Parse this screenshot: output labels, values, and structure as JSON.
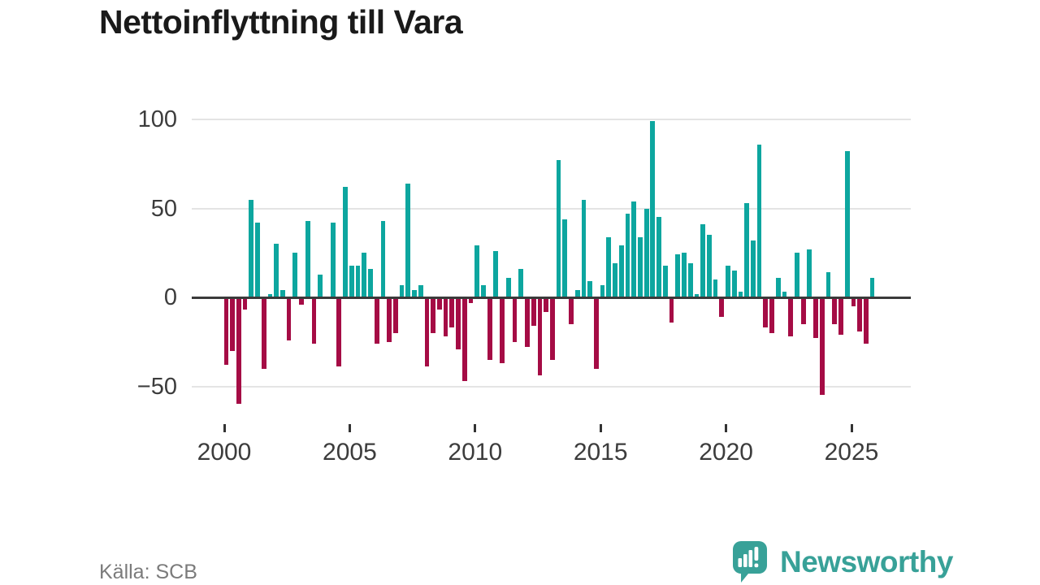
{
  "title": "Nettoinflyttning till Vara",
  "source": "Källa: SCB",
  "logo": {
    "text": "Newsworthy",
    "icon": "newsworthy-chat-bars-icon"
  },
  "colors": {
    "positive": "#0da69f",
    "negative": "#a50c45",
    "zero_line": "#3a3a3a",
    "grid": "#e4e4e4",
    "tick": "#333333",
    "logo": "#38a198"
  },
  "chart_data": {
    "type": "bar",
    "title": "Nettoinflyttning till Vara",
    "x_unit": "quarter",
    "start": "2000-Q1",
    "end": "2025-Q4",
    "grid": "horizontal",
    "legend": "none",
    "ylim": [
      -65,
      105
    ],
    "y_ticks": [
      100,
      50,
      0,
      -50
    ],
    "x_ticks": [
      2000,
      2005,
      2010,
      2015,
      2020,
      2025
    ],
    "series": [
      {
        "name": "Nettoinflyttning",
        "values": [
          -38,
          -30,
          -60,
          -7,
          55,
          42,
          -40,
          2,
          30,
          4,
          -24,
          25,
          -4,
          43,
          -26,
          13,
          0,
          42,
          -39,
          62,
          18,
          18,
          25,
          16,
          -26,
          43,
          -25,
          -20,
          7,
          64,
          4,
          7,
          -39,
          -20,
          -7,
          -22,
          -17,
          -29,
          -47,
          -3,
          29,
          7,
          -35,
          26,
          -37,
          11,
          -25,
          16,
          -28,
          -16,
          -44,
          -8,
          -35,
          77,
          44,
          -15,
          4,
          55,
          9,
          -40,
          7,
          34,
          19,
          29,
          47,
          54,
          34,
          50,
          99,
          45,
          18,
          -14,
          24,
          25,
          19,
          2,
          41,
          35,
          10,
          -11,
          18,
          15,
          3,
          53,
          32,
          86,
          -17,
          -20,
          11,
          3,
          -22,
          25,
          -15,
          27,
          -23,
          -55,
          14,
          -15,
          -21,
          82,
          -5,
          -19,
          -26,
          11
        ]
      }
    ]
  }
}
